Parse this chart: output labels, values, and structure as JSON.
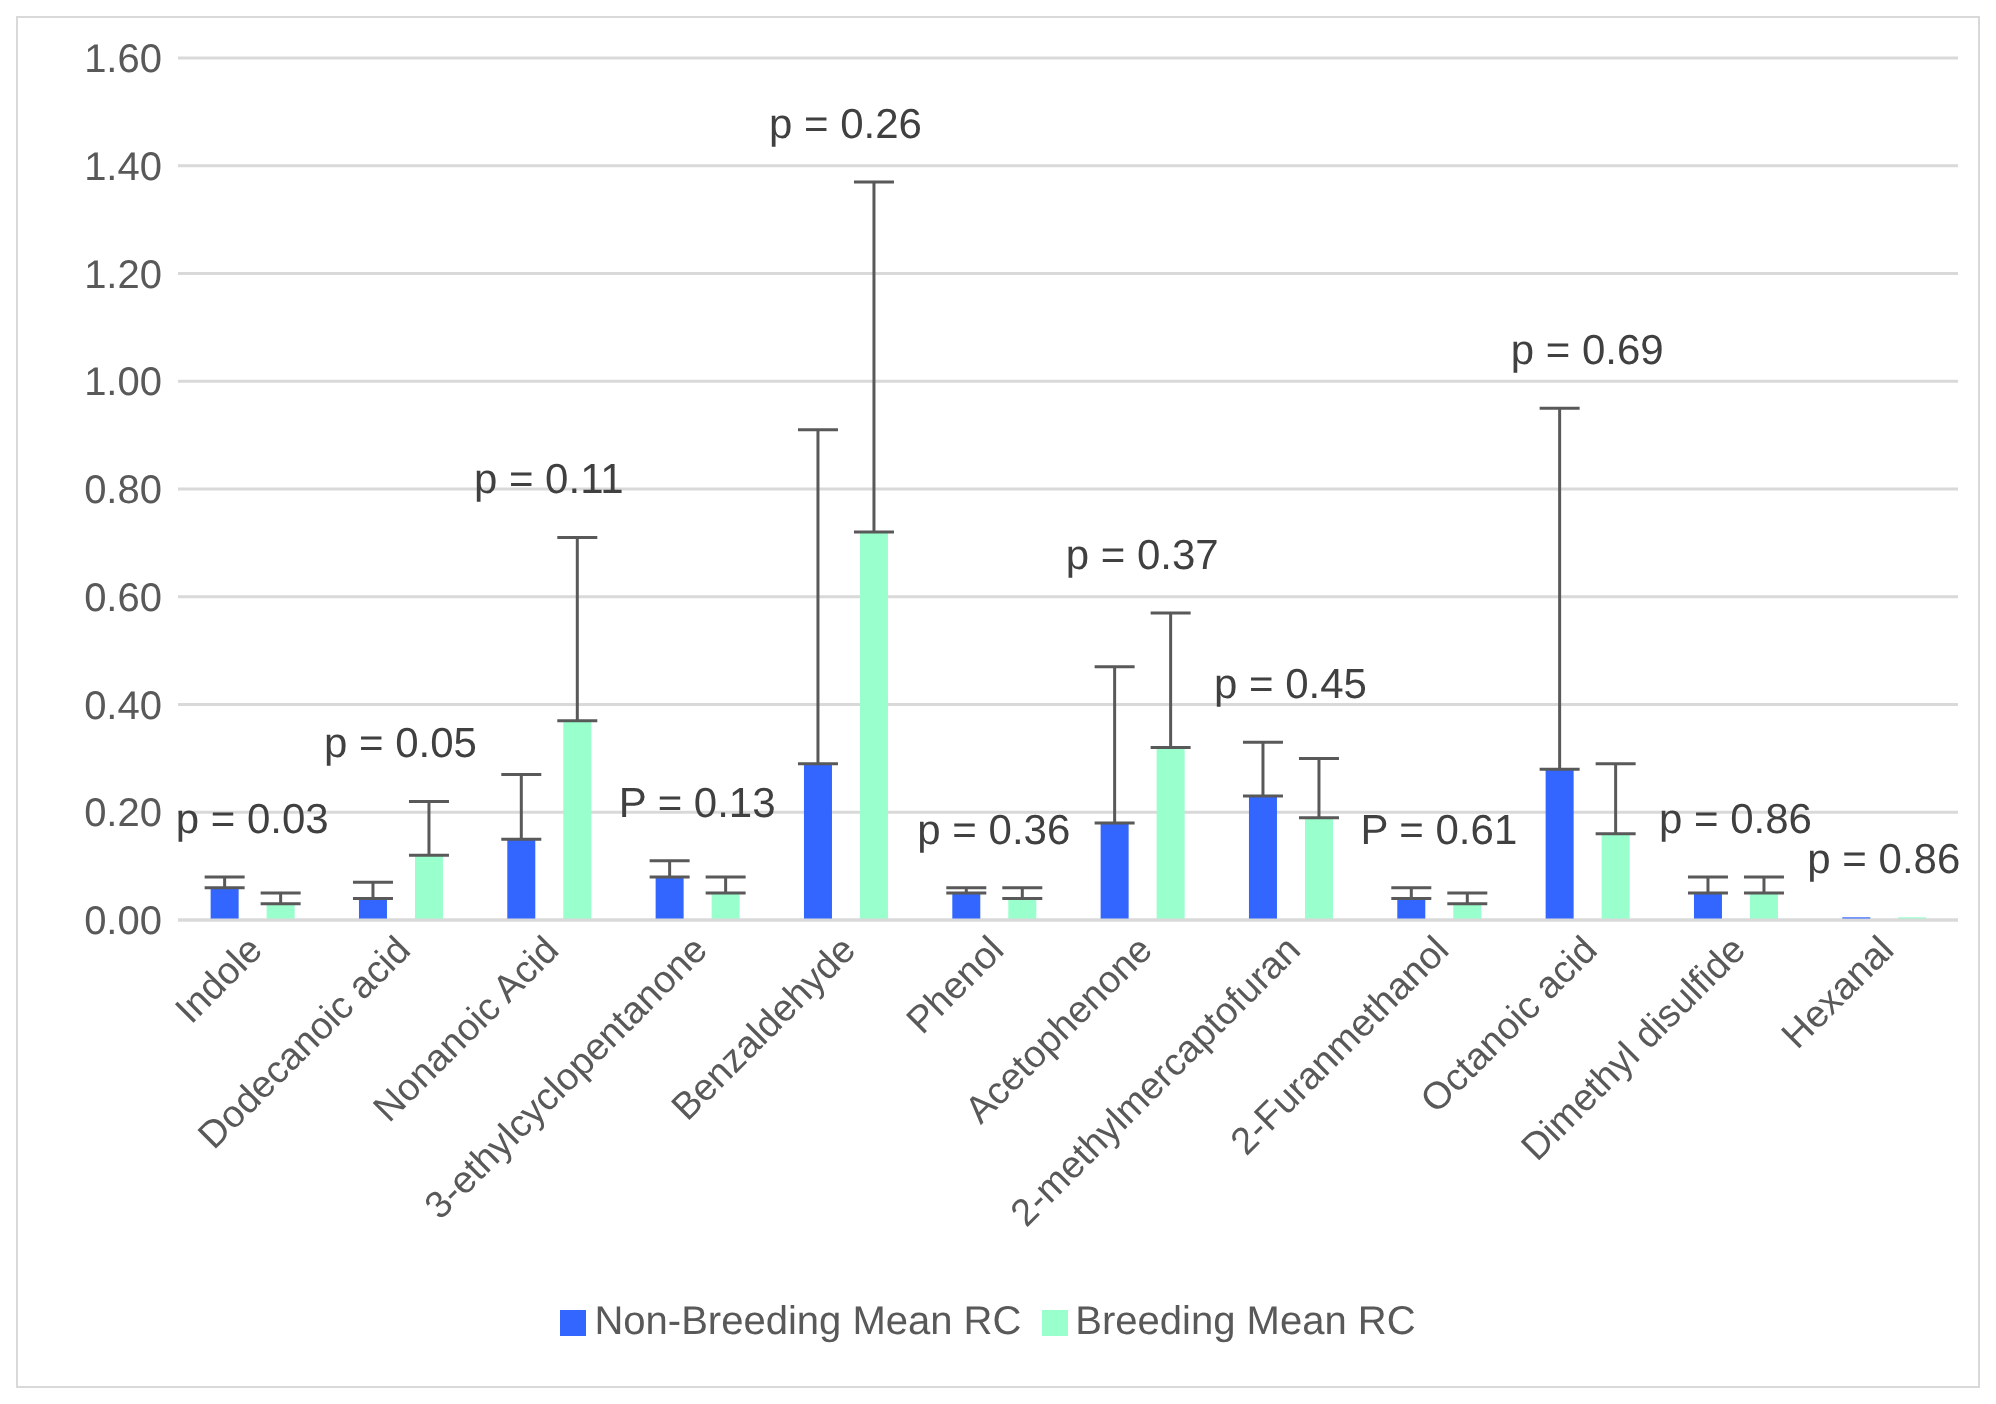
{
  "chart_data": {
    "type": "bar",
    "categories": [
      "Indole",
      "Dodecanoic acid",
      "Nonanoic Acid",
      "3-ethylcyclopentanone",
      "Benzaldehyde",
      "Phenol",
      "Acetophenone",
      "2-methylmercaptofuran",
      "2-Furanmethanol",
      "Octanoic acid",
      "Dimethyl disulfide",
      "Hexanal"
    ],
    "series": [
      {
        "name": "Non-Breeding Mean RC",
        "color": "#3366ff",
        "values": [
          0.06,
          0.04,
          0.15,
          0.08,
          0.29,
          0.05,
          0.18,
          0.23,
          0.04,
          0.28,
          0.05,
          0.005
        ],
        "errors": [
          [
            0.06,
            0.08
          ],
          [
            0.04,
            0.07
          ],
          [
            0.15,
            0.27
          ],
          [
            0.08,
            0.11
          ],
          [
            0.29,
            0.91
          ],
          [
            0.05,
            0.06
          ],
          [
            0.18,
            0.47
          ],
          [
            0.23,
            0.33
          ],
          [
            0.04,
            0.06
          ],
          [
            0.28,
            0.95
          ],
          [
            0.05,
            0.08
          ],
          null
        ]
      },
      {
        "name": "Breeding Mean RC",
        "color": "#99ffcc",
        "values": [
          0.03,
          0.12,
          0.37,
          0.05,
          0.72,
          0.04,
          0.32,
          0.19,
          0.03,
          0.16,
          0.05,
          0.005
        ],
        "errors": [
          [
            0.03,
            0.05
          ],
          [
            0.12,
            0.22
          ],
          [
            0.37,
            0.71
          ],
          [
            0.05,
            0.08
          ],
          [
            0.72,
            1.37
          ],
          [
            0.04,
            0.06
          ],
          [
            0.32,
            0.57
          ],
          [
            0.19,
            0.3
          ],
          [
            0.03,
            0.05
          ],
          [
            0.16,
            0.29
          ],
          [
            0.05,
            0.08
          ],
          null
        ]
      }
    ],
    "ylim": [
      0,
      1.6
    ],
    "yticks": [
      {
        "value": 0,
        "label": "0.00"
      },
      {
        "value": 0.2,
        "label": "0.20"
      },
      {
        "value": 0.4,
        "label": "0.40"
      },
      {
        "value": 0.6,
        "label": "0.60"
      },
      {
        "value": 0.8,
        "label": "0.80"
      },
      {
        "value": 1,
        "label": "1.00"
      },
      {
        "value": 1.2,
        "label": "1.20"
      },
      {
        "value": 1.4,
        "label": "1.40"
      },
      {
        "value": 1.6,
        "label": "1.60"
      }
    ],
    "grid": "y",
    "legend": "bottom",
    "annotations": [
      "p = 0.03",
      "p = 0.05",
      "p = 0.11",
      "P = 0.13",
      "p = 0.26",
      "p = 0.36",
      "p = 0.37",
      "p = 0.45",
      "P = 0.61",
      "p = 0.69",
      "p = 0.86",
      "p = 0.86"
    ]
  }
}
